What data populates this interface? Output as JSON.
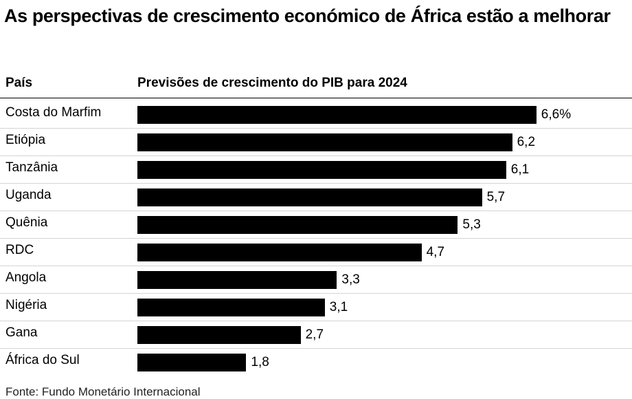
{
  "title": "As perspectivas de crescimento económico de África estão a melhorar",
  "headers": {
    "country": "País",
    "values": "Previsões de crescimento do PIB para 2024"
  },
  "source": "Fonte: Fundo Monetário Internacional",
  "chart_data": {
    "type": "bar",
    "orientation": "horizontal",
    "title": "As perspectivas de crescimento económico de África estão a melhorar",
    "categories": [
      "Costa do Marfim",
      "Etiópia",
      "Tanzânia",
      "Uganda",
      "Quênia",
      "RDC",
      "Angola",
      "Nigéria",
      "Gana",
      "África do Sul"
    ],
    "values": [
      6.6,
      6.2,
      6.1,
      5.7,
      5.3,
      4.7,
      3.3,
      3.1,
      2.7,
      1.8
    ],
    "value_labels": [
      "6,6%",
      "6,2",
      "6,1",
      "5,7",
      "5,3",
      "4,7",
      "3,3",
      "3,1",
      "2,7",
      "1,8"
    ],
    "bar_color": "#000000",
    "grid": false,
    "legend": "none"
  }
}
